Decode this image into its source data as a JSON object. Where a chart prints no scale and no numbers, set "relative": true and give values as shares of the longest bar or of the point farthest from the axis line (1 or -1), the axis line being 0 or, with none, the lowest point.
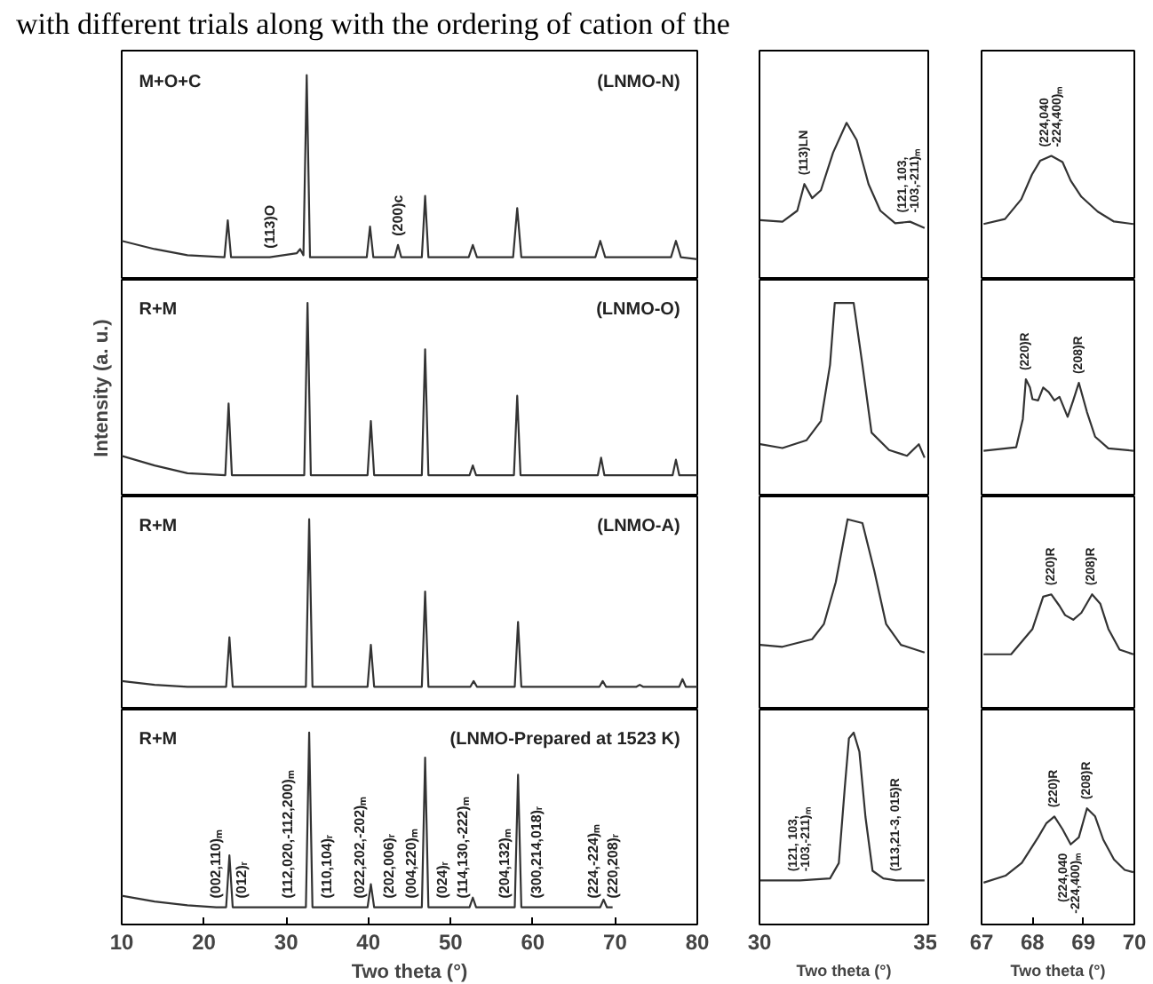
{
  "chart_data": [
    {
      "type": "line",
      "title": "with different trials along with the ordering of cation of the",
      "relative": true,
      "xlim": [
        10,
        80
      ],
      "tick_labels": false,
      "color": "#333333",
      "x": [
        10,
        14,
        18,
        22.5,
        22.9,
        23.3,
        28,
        31.3,
        31.7,
        32.1,
        32.5,
        32.9,
        36,
        39.8,
        40.2,
        40.6,
        43.2,
        43.6,
        44,
        46.5,
        46.9,
        47.3,
        52.2,
        52.7,
        53.2,
        57.6,
        58.1,
        58.6,
        62,
        67.6,
        68.2,
        68.8,
        72,
        76.8,
        77.4,
        78,
        80
      ],
      "values": [
        0.19,
        0.15,
        0.12,
        0.11,
        0.29,
        0.11,
        0.11,
        0.13,
        0.15,
        0.12,
        1,
        0.11,
        0.11,
        0.11,
        0.26,
        0.11,
        0.11,
        0.17,
        0.11,
        0.11,
        0.41,
        0.11,
        0.11,
        0.17,
        0.11,
        0.11,
        0.35,
        0.11,
        0.11,
        0.11,
        0.19,
        0.11,
        0.11,
        0.11,
        0.19,
        0.11,
        0.1
      ],
      "annotations": [
        "M+O+C",
        "(LNMO-N)",
        {
          "text": "(113)O",
          "x": 28,
          "y": 0.11
        },
        {
          "text": "(200)c",
          "x": 43.6,
          "y": 0.17
        }
      ]
    },
    {
      "type": "line",
      "relative": true,
      "xlim": [
        30,
        35
      ],
      "tick_labels": false,
      "color": "#333333",
      "x": [
        30.02,
        30.68,
        31.12,
        31.33,
        31.56,
        31.82,
        32.18,
        32.58,
        32.88,
        33.23,
        33.58,
        34.02,
        34.46,
        34.89
      ],
      "values": [
        0.38,
        0.37,
        0.44,
        0.61,
        0.52,
        0.57,
        0.81,
        1,
        0.89,
        0.61,
        0.44,
        0.36,
        0.37,
        0.33
      ],
      "annotations": [
        {
          "text": "(113)LN",
          "x": 31.33,
          "y": 0.61
        },
        {
          "text": "(121, 103,\n-103,-211)ₘ",
          "x": 34.46,
          "y": 0.37
        }
      ]
    },
    {
      "type": "line",
      "relative": true,
      "xlim": [
        67,
        70
      ],
      "tick_labels": false,
      "color": "#333333",
      "x": [
        67.04,
        67.46,
        67.78,
        67.99,
        68.15,
        68.37,
        68.59,
        68.75,
        68.96,
        69.28,
        69.6,
        69.98
      ],
      "values": [
        0.45,
        0.49,
        0.65,
        0.85,
        0.96,
        1,
        0.95,
        0.8,
        0.67,
        0.55,
        0.47,
        0.45
      ],
      "annotations": [
        {
          "text": "(224,040\n-224,400)ₘ",
          "x": 68.37,
          "y": 1
        }
      ]
    },
    {
      "type": "line",
      "relative": true,
      "xlim": [
        10,
        80
      ],
      "tick_labels": false,
      "color": "#333333",
      "ylabel": "Intensity (a. u.)",
      "x": [
        10,
        14,
        18,
        22.6,
        23.0,
        23.4,
        32.2,
        32.6,
        33.0,
        39.9,
        40.3,
        40.7,
        46.5,
        46.9,
        47.3,
        52.3,
        52.7,
        53.1,
        57.7,
        58.1,
        58.5,
        67.9,
        68.3,
        68.7,
        77.0,
        77.4,
        77.8,
        80
      ],
      "values": [
        0.21,
        0.16,
        0.12,
        0.11,
        0.48,
        0.11,
        0.11,
        1,
        0.11,
        0.11,
        0.39,
        0.11,
        0.11,
        0.76,
        0.11,
        0.11,
        0.16,
        0.11,
        0.11,
        0.52,
        0.11,
        0.11,
        0.2,
        0.11,
        0.11,
        0.19,
        0.11,
        0.11
      ],
      "annotations": [
        "R+M",
        "(LNMO-O)"
      ]
    },
    {
      "type": "line",
      "relative": true,
      "xlim": [
        30,
        35
      ],
      "tick_labels": false,
      "color": "#333333",
      "x": [
        30.02,
        30.68,
        31.39,
        31.82,
        32.09,
        32.23,
        32.79,
        33.05,
        33.32,
        33.84,
        34.37,
        34.72,
        34.89
      ],
      "values": [
        0.27,
        0.25,
        0.29,
        0.39,
        0.68,
        1,
        1,
        0.68,
        0.33,
        0.24,
        0.21,
        0.27,
        0.2
      ]
    },
    {
      "type": "line",
      "relative": true,
      "xlim": [
        67,
        70
      ],
      "tick_labels": false,
      "color": "#333333",
      "x": [
        67.04,
        67.68,
        67.81,
        67.87,
        67.95,
        68.0,
        68.11,
        68.21,
        68.32,
        68.43,
        68.53,
        68.69,
        68.8,
        68.91,
        69.07,
        69.23,
        69.49,
        69.98
      ],
      "values": [
        0.39,
        0.42,
        0.66,
        1,
        0.93,
        0.83,
        0.82,
        0.93,
        0.89,
        0.82,
        0.85,
        0.68,
        0.82,
        0.97,
        0.72,
        0.51,
        0.41,
        0.39
      ],
      "annotations": [
        {
          "text": "(220)R",
          "x": 67.87,
          "y": 1
        },
        {
          "text": "(208)R",
          "x": 68.91,
          "y": 0.97
        }
      ]
    },
    {
      "type": "line",
      "relative": true,
      "xlim": [
        10,
        80
      ],
      "tick_labels": false,
      "color": "#333333",
      "x": [
        10,
        14,
        18,
        22.7,
        23.1,
        23.5,
        32.4,
        32.8,
        33.2,
        39.9,
        40.3,
        40.7,
        46.5,
        46.9,
        47.3,
        52.4,
        52.8,
        53.2,
        57.8,
        58.2,
        58.6,
        68.1,
        68.5,
        68.9,
        72.6,
        73.0,
        73.4,
        77.8,
        78.2,
        78.6,
        80
      ],
      "values": [
        0.15,
        0.13,
        0.12,
        0.12,
        0.38,
        0.12,
        0.12,
        1,
        0.12,
        0.12,
        0.34,
        0.12,
        0.12,
        0.62,
        0.12,
        0.12,
        0.15,
        0.12,
        0.12,
        0.46,
        0.12,
        0.12,
        0.15,
        0.12,
        0.12,
        0.13,
        0.12,
        0.12,
        0.16,
        0.12,
        0.12
      ],
      "annotations": [
        "R+M",
        "(LNMO-A)"
      ]
    },
    {
      "type": "line",
      "relative": true,
      "xlim": [
        30,
        35
      ],
      "tick_labels": false,
      "color": "#333333",
      "x": [
        30.02,
        30.68,
        31.56,
        31.91,
        32.26,
        32.61,
        33.05,
        33.4,
        33.75,
        34.19,
        34.89
      ],
      "values": [
        0.34,
        0.33,
        0.37,
        0.45,
        0.67,
        1,
        0.98,
        0.73,
        0.45,
        0.34,
        0.3
      ]
    },
    {
      "type": "line",
      "relative": true,
      "xlim": [
        67,
        70
      ],
      "tick_labels": false,
      "color": "#333333",
      "x": [
        67.04,
        67.58,
        68.0,
        68.21,
        68.37,
        68.53,
        68.64,
        68.8,
        68.96,
        69.17,
        69.33,
        69.49,
        69.71,
        69.98
      ],
      "values": [
        0.48,
        0.48,
        0.7,
        0.98,
        1,
        0.9,
        0.82,
        0.78,
        0.84,
        1,
        0.92,
        0.7,
        0.52,
        0.48
      ],
      "annotations": [
        {
          "text": "(220)R",
          "x": 68.37,
          "y": 1
        },
        {
          "text": "(208)R",
          "x": 69.17,
          "y": 1
        }
      ]
    },
    {
      "type": "line",
      "relative": true,
      "xlim": [
        10,
        80
      ],
      "xticks": [
        10,
        20,
        30,
        40,
        50,
        60,
        70,
        80
      ],
      "tick_labels": "x",
      "xlabel": "Two theta (°)",
      "color": "#333333",
      "x": [
        10,
        14,
        18,
        21.5,
        22.7,
        23.1,
        23.5,
        24.6,
        30.2,
        32.4,
        32.8,
        33.2,
        34.9,
        38.9,
        39.9,
        40.3,
        40.7,
        42.5,
        45.2,
        46.5,
        46.9,
        47.3,
        49.0,
        51.5,
        52.3,
        52.7,
        53.1,
        56.6,
        57.8,
        58.2,
        58.6,
        60.5,
        67.4,
        68.2,
        68.6,
        69.0,
        69.7
      ],
      "values": [
        0.15,
        0.12,
        0.1,
        0.09,
        0.09,
        0.36,
        0.09,
        0.09,
        0.09,
        0.09,
        1,
        0.09,
        0.09,
        0.09,
        0.09,
        0.21,
        0.09,
        0.09,
        0.09,
        0.09,
        0.87,
        0.09,
        0.09,
        0.09,
        0.09,
        0.14,
        0.09,
        0.09,
        0.09,
        0.78,
        0.09,
        0.09,
        0.09,
        0.09,
        0.13,
        0.09,
        0.09
      ],
      "annotations": [
        "R+M",
        "(LNMO-Prepared at 1523 K)",
        {
          "text": "(002,110)ₘ",
          "x": 21.5,
          "y": 0.09
        },
        {
          "text": "(012)ᵣ",
          "x": 24.6,
          "y": 0.09
        },
        {
          "text": "(112,020,-112,200)ₘ",
          "x": 30.2,
          "y": 0.09
        },
        {
          "text": "(110,104)ᵣ",
          "x": 34.9,
          "y": 0.09
        },
        {
          "text": "(022,202,-202)ₘ",
          "x": 38.9,
          "y": 0.09
        },
        {
          "text": "(202,006)ᵣ",
          "x": 42.5,
          "y": 0.09
        },
        {
          "text": "(004,220)ₘ",
          "x": 45.2,
          "y": 0.09
        },
        {
          "text": "(024)ᵣ",
          "x": 49.0,
          "y": 0.09
        },
        {
          "text": "(114,130,-222)ₘ",
          "x": 51.5,
          "y": 0.09
        },
        {
          "text": "(204,132)ₘ",
          "x": 56.6,
          "y": 0.09
        },
        {
          "text": "(300,214,018)ᵣ",
          "x": 60.5,
          "y": 0.09
        },
        {
          "text": "(224,-224)ₘ",
          "x": 67.4,
          "y": 0.09
        },
        {
          "text": "(220,208)ᵣ",
          "x": 69.7,
          "y": 0.09
        }
      ]
    },
    {
      "type": "line",
      "relative": true,
      "xlim": [
        30,
        35
      ],
      "xticks": [
        30,
        35
      ],
      "tick_labels": "x",
      "xlabel": "Two theta (°)",
      "color": "#333333",
      "x": [
        30.02,
        31.2,
        32.09,
        32.35,
        32.53,
        32.65,
        32.79,
        32.96,
        33.14,
        33.35,
        33.67,
        34.05,
        34.89
      ],
      "values": [
        0.23,
        0.23,
        0.24,
        0.32,
        0.72,
        0.97,
        1,
        0.9,
        0.56,
        0.28,
        0.24,
        0.23,
        0.23
      ],
      "annotations": [
        {
          "text": "(121, 103,\n-103,-211)ₘ",
          "x": 31.2,
          "y": 0.23
        },
        {
          "text": "(113,21-3, 015)R",
          "x": 34.05,
          "y": 0.23
        }
      ]
    },
    {
      "type": "line",
      "relative": true,
      "xlim": [
        67,
        70
      ],
      "xticks": [
        67,
        68,
        69,
        70
      ],
      "tick_labels": "x",
      "xlabel": "Two theta (°)",
      "color": "#333333",
      "x": [
        67.04,
        67.47,
        67.79,
        68.11,
        68.27,
        68.43,
        68.59,
        68.75,
        68.91,
        69.07,
        69.23,
        69.39,
        69.6,
        69.81,
        69.98
      ],
      "values": [
        0.36,
        0.42,
        0.53,
        0.75,
        0.87,
        0.93,
        0.82,
        0.69,
        0.75,
        1,
        0.93,
        0.73,
        0.56,
        0.47,
        0.45
      ],
      "annotations": [
        {
          "text": "(220)R",
          "x": 68.43,
          "y": 0.93
        },
        {
          "text": "(208)R",
          "x": 69.07,
          "y": 1
        },
        {
          "text": "(224,040\n-224,400)ₘ",
          "x": 68.75,
          "y": 0.69
        }
      ]
    }
  ]
}
